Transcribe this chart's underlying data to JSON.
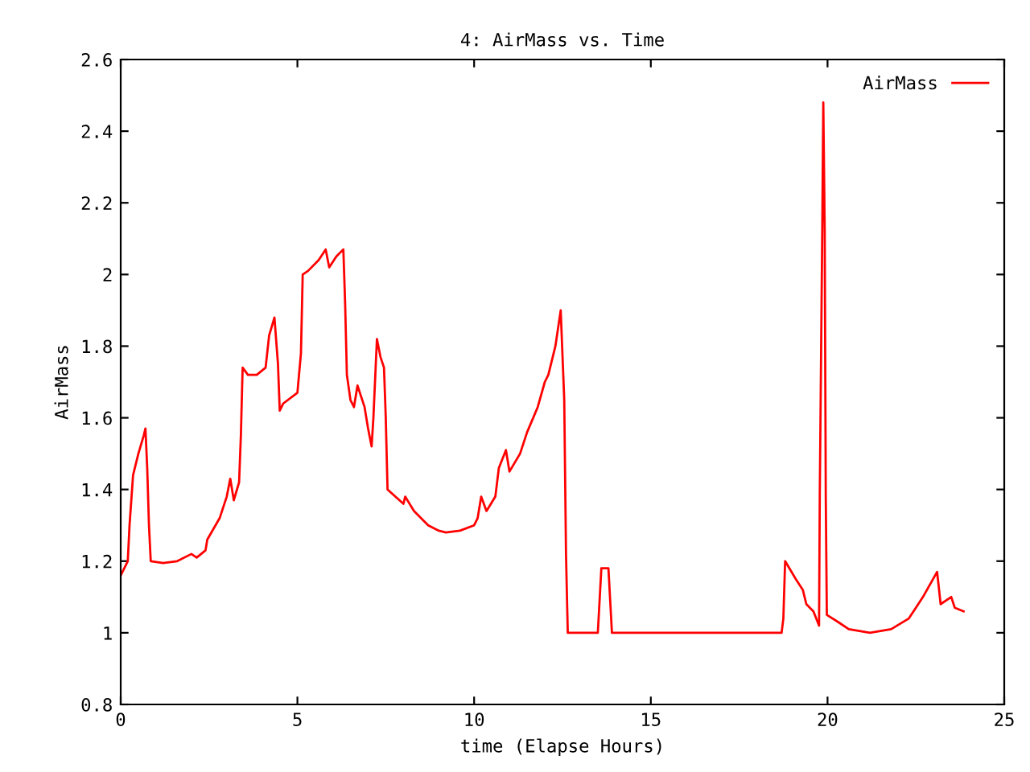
{
  "chart_data": {
    "type": "line",
    "title": "4: AirMass vs. Time",
    "xlabel": "time (Elapse Hours)",
    "ylabel": "AirMass",
    "xlim": [
      0,
      25
    ],
    "xticks": [
      0,
      5,
      10,
      15,
      20,
      25
    ],
    "ylim": [
      0.8,
      2.6
    ],
    "yticks": [
      0.8,
      1,
      1.2,
      1.4,
      1.6,
      1.8,
      2,
      2.2,
      2.4,
      2.6
    ],
    "legend": "top right",
    "grid": false,
    "marker": "none",
    "line_style": "solid",
    "series": [
      {
        "name": "AirMass",
        "color": "#ff0000",
        "x": [
          0,
          0.2,
          0.25,
          0.35,
          0.5,
          0.65,
          0.7,
          0.75,
          0.8,
          0.85,
          1.2,
          1.6,
          2.0,
          2.15,
          2.4,
          2.45,
          2.8,
          3.0,
          3.1,
          3.2,
          3.35,
          3.4,
          3.45,
          3.6,
          3.85,
          4.1,
          4.2,
          4.35,
          4.45,
          4.5,
          4.6,
          5.0,
          5.1,
          5.15,
          5.3,
          5.6,
          5.8,
          5.9,
          6.1,
          6.3,
          6.35,
          6.4,
          6.5,
          6.6,
          6.7,
          6.9,
          7.0,
          7.1,
          7.15,
          7.25,
          7.35,
          7.45,
          7.5,
          7.55,
          8.0,
          8.05,
          8.3,
          8.7,
          9.0,
          9.2,
          9.6,
          10.0,
          10.1,
          10.2,
          10.35,
          10.6,
          10.7,
          10.9,
          11.0,
          11.3,
          11.5,
          11.8,
          12.0,
          12.1,
          12.3,
          12.45,
          12.55,
          12.6,
          12.65,
          13.5,
          13.6,
          13.8,
          13.9,
          18.7,
          18.75,
          18.8,
          19.1,
          19.3,
          19.4,
          19.6,
          19.72,
          19.76,
          19.78,
          19.85,
          19.88,
          19.92,
          19.95,
          19.98,
          20.3,
          20.6,
          21.2,
          21.8,
          22.3,
          22.5,
          22.7,
          23.1,
          23.2,
          23.5,
          23.6,
          23.85
        ],
        "values": [
          1.16,
          1.2,
          1.3,
          1.44,
          1.5,
          1.55,
          1.57,
          1.46,
          1.3,
          1.2,
          1.195,
          1.2,
          1.22,
          1.21,
          1.23,
          1.26,
          1.32,
          1.38,
          1.43,
          1.37,
          1.42,
          1.55,
          1.74,
          1.72,
          1.72,
          1.74,
          1.83,
          1.88,
          1.75,
          1.62,
          1.64,
          1.67,
          1.78,
          2.0,
          2.01,
          2.04,
          2.07,
          2.02,
          2.05,
          2.07,
          1.92,
          1.72,
          1.65,
          1.63,
          1.69,
          1.63,
          1.57,
          1.52,
          1.6,
          1.82,
          1.77,
          1.74,
          1.6,
          1.4,
          1.36,
          1.38,
          1.34,
          1.3,
          1.285,
          1.28,
          1.285,
          1.3,
          1.32,
          1.38,
          1.34,
          1.38,
          1.46,
          1.51,
          1.45,
          1.5,
          1.56,
          1.63,
          1.7,
          1.72,
          1.8,
          1.9,
          1.65,
          1.22,
          1.0,
          1.0,
          1.18,
          1.18,
          1.0,
          1.0,
          1.04,
          1.2,
          1.15,
          1.12,
          1.08,
          1.06,
          1.03,
          1.02,
          1.38,
          2.12,
          2.48,
          2.12,
          1.38,
          1.05,
          1.03,
          1.01,
          1.0,
          1.01,
          1.04,
          1.07,
          1.1,
          1.17,
          1.08,
          1.1,
          1.07,
          1.06
        ]
      }
    ]
  }
}
